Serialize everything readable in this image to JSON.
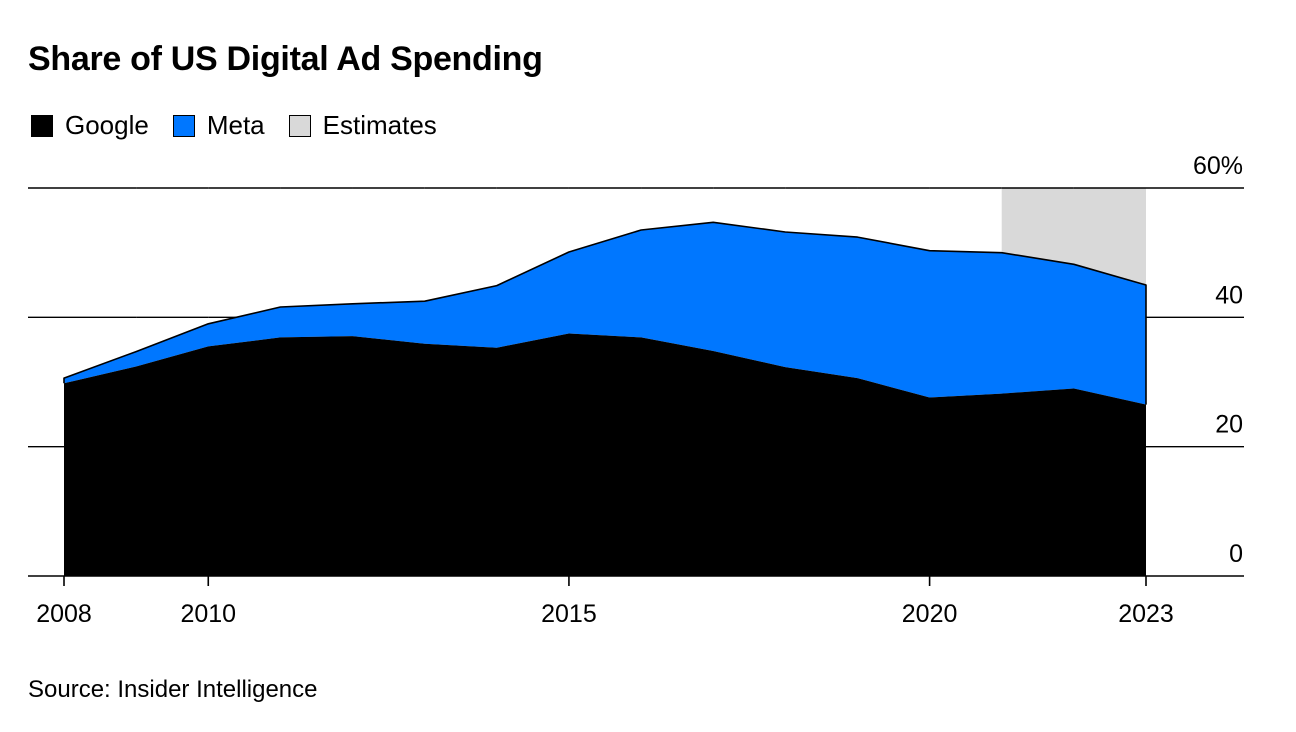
{
  "chart_data": {
    "type": "area",
    "title": "Share of US Digital Ad Spending",
    "x": [
      2008,
      2009,
      2010,
      2011,
      2012,
      2013,
      2014,
      2015,
      2016,
      2017,
      2018,
      2019,
      2020,
      2021,
      2022,
      2023
    ],
    "series": [
      {
        "name": "Google",
        "color": "#000000",
        "values": [
          29.8,
          32.4,
          35.5,
          36.9,
          37.1,
          35.9,
          35.3,
          37.5,
          36.9,
          34.8,
          32.3,
          30.6,
          27.6,
          28.2,
          29.0,
          26.5
        ]
      },
      {
        "name": "Meta",
        "color": "#0077FF",
        "values": [
          0.8,
          2.3,
          3.5,
          4.7,
          5.0,
          6.6,
          9.6,
          12.6,
          16.6,
          19.9,
          20.9,
          21.8,
          22.7,
          21.8,
          19.2,
          18.5
        ]
      }
    ],
    "totals": [
      30.6,
      34.7,
      39.0,
      41.6,
      42.1,
      42.5,
      44.9,
      50.1,
      53.5,
      54.7,
      53.2,
      52.4,
      50.3,
      50.0,
      48.2,
      45.0
    ],
    "estimates": {
      "label": "Estimates",
      "color": "#D9D9D9",
      "from": 2021,
      "to": 2023
    },
    "xticks": [
      "2008",
      "2010",
      "2015",
      "2020",
      "2023"
    ],
    "xtick_values": [
      2008,
      2010,
      2015,
      2020,
      2023
    ],
    "yticks": [
      "0",
      "20",
      "40",
      "60%"
    ],
    "ytick_values": [
      0,
      20,
      40,
      60
    ],
    "ylim": [
      0,
      60
    ],
    "xlim": [
      2008,
      2023
    ],
    "xlabel": "",
    "ylabel": "",
    "legend": [
      "Google",
      "Meta",
      "Estimates"
    ],
    "legend_position": "top-left",
    "grid": true
  },
  "source": "Source: Insider Intelligence"
}
